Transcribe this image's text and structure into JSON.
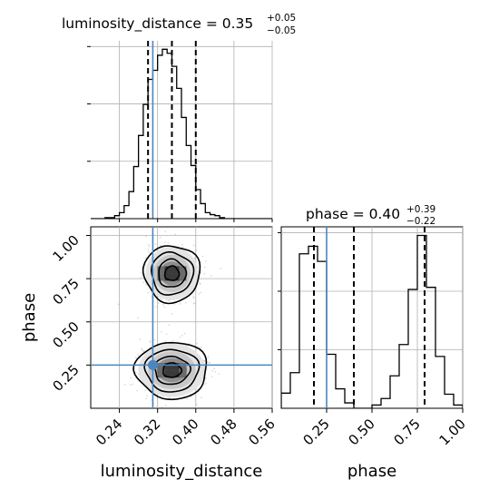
{
  "chart_data": [
    {
      "type": "histogram",
      "panel": "luminosity_distance marginal",
      "title_param": "luminosity_distance",
      "title_value": "0.35",
      "title_plus": "+0.05",
      "title_minus": "−0.05",
      "xlim": [
        0.18,
        0.56
      ],
      "bins": [
        0.18,
        0.19,
        0.2,
        0.21,
        0.22,
        0.23,
        0.24,
        0.25,
        0.26,
        0.27,
        0.28,
        0.29,
        0.3,
        0.31,
        0.32,
        0.33,
        0.34,
        0.35,
        0.36,
        0.37,
        0.38,
        0.39,
        0.4,
        0.41,
        0.42,
        0.43,
        0.44,
        0.45,
        0.46,
        0.47,
        0.48,
        0.49,
        0.5,
        0.51,
        0.52,
        0.53,
        0.54,
        0.55,
        0.56
      ],
      "counts": [
        0,
        0,
        0,
        1,
        1,
        3,
        6,
        13,
        27,
        52,
        83,
        114,
        139,
        148,
        163,
        169,
        165,
        152,
        130,
        101,
        73,
        53,
        29,
        15,
        6,
        4,
        3,
        1,
        0,
        0,
        0,
        0,
        0,
        0,
        0,
        0,
        0,
        0
      ],
      "quantiles": [
        0.3,
        0.35,
        0.4
      ],
      "truth": 0.31,
      "grid": true
    },
    {
      "type": "histogram",
      "panel": "phase marginal",
      "title_param": "phase",
      "title_value": "0.40",
      "title_plus": "+0.39",
      "title_minus": "−0.22",
      "xlim": [
        0.0,
        1.0
      ],
      "bins": [
        0.0,
        0.05,
        0.1,
        0.15,
        0.2,
        0.25,
        0.3,
        0.35,
        0.4,
        0.45,
        0.5,
        0.55,
        0.6,
        0.65,
        0.7,
        0.75,
        0.8,
        0.85,
        0.9,
        0.95,
        1.0
      ],
      "counts": [
        14,
        33,
        143,
        150,
        136,
        50,
        18,
        5,
        0,
        0,
        3,
        9,
        30,
        59,
        110,
        160,
        112,
        48,
        13,
        3
      ],
      "quantiles": [
        0.18,
        0.4,
        0.79
      ],
      "truth": 0.25,
      "grid": true
    },
    {
      "type": "scatter_contour",
      "panel": "phase vs luminosity_distance",
      "xlabel": "luminosity_distance",
      "ylabel": "phase",
      "xlim": [
        0.18,
        0.56
      ],
      "ylim": [
        0.0,
        1.05
      ],
      "xticks": [
        "0.24",
        "0.32",
        "0.40",
        "0.48",
        "0.56"
      ],
      "yticks": [
        "0.25",
        "0.50",
        "0.75",
        "1.00"
      ],
      "modes": [
        {
          "center": [
            0.35,
            0.78
          ],
          "sx": 0.025,
          "sy": 0.07
        },
        {
          "center": [
            0.35,
            0.22
          ],
          "sx": 0.032,
          "sy": 0.07
        }
      ],
      "truth": [
        0.31,
        0.25
      ],
      "grid": true
    },
    {
      "type": "axis",
      "panel": "phase axis",
      "xlabel": "phase",
      "xticks": [
        "0.25",
        "0.50",
        "0.75",
        "1.00"
      ]
    }
  ],
  "colors": {
    "truth": "#4a86c0",
    "line": "#000000",
    "grid": "#b0b0b0",
    "points": "#9a9a9a"
  }
}
